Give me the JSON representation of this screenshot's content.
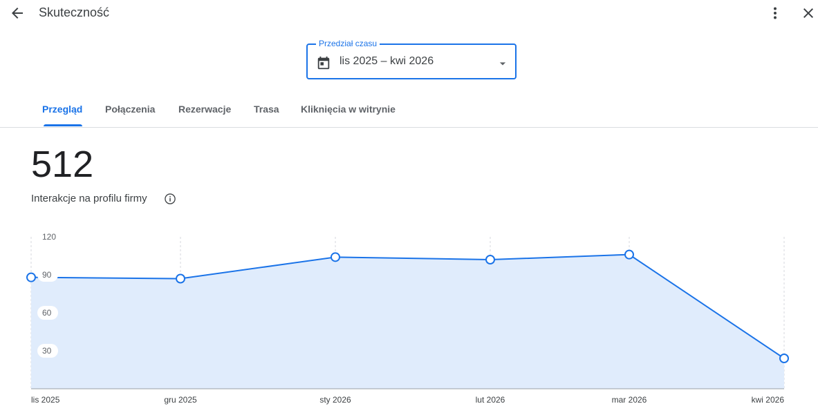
{
  "header": {
    "title": "Skuteczność",
    "icons": {
      "back": "arrow-back-icon",
      "more": "more-vert-icon",
      "close": "close-icon"
    }
  },
  "range": {
    "label": "Przedział czasu",
    "value": "lis 2025 – kwi 2026",
    "icon": "calendar-icon"
  },
  "tabs": [
    {
      "label": "Przegląd",
      "active": true
    },
    {
      "label": "Połączenia",
      "active": false
    },
    {
      "label": "Rezerwacje",
      "active": false
    },
    {
      "label": "Trasa",
      "active": false
    },
    {
      "label": "Kliknięcia w witrynie",
      "active": false
    }
  ],
  "metric": {
    "value": "512",
    "label": "Interakcje na profilu firmy"
  },
  "colors": {
    "accent": "#1a73e8",
    "line": "#1a73e8",
    "fill": "#e0ecfc"
  },
  "chart_data": {
    "type": "area",
    "categories": [
      "lis 2025",
      "gru 2025",
      "sty 2026",
      "lut 2026",
      "mar 2026",
      "kwi 2026"
    ],
    "values": [
      88,
      87,
      104,
      102,
      106,
      24
    ],
    "yticks": [
      30,
      60,
      90,
      120
    ],
    "ylim": [
      0,
      120
    ],
    "grid": true,
    "legend": "none"
  }
}
